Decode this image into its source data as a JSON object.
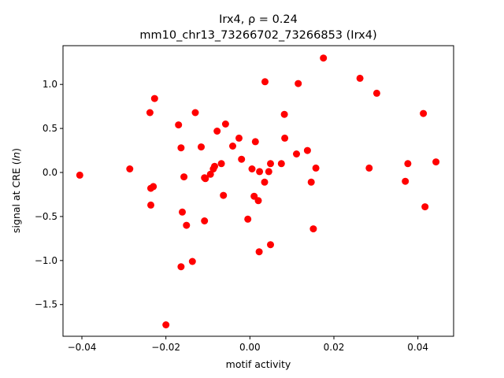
{
  "chart_data": {
    "type": "scatter",
    "title_line1": "Irx4, ρ = 0.24",
    "title_line2": "mm10_chr13_73266702_73266853 (Irx4)",
    "xlabel": "motif activity",
    "ylabel": "signal at CRE (ln)",
    "xlim": [
      -0.0445,
      0.0485
    ],
    "ylim": [
      -1.86,
      1.44
    ],
    "xticks": [
      -0.04,
      -0.02,
      0.0,
      0.02,
      0.04
    ],
    "xtick_labels": [
      "−0.04",
      "−0.02",
      "0.00",
      "0.02",
      "0.04"
    ],
    "yticks": [
      -1.5,
      -1.0,
      -0.5,
      0.0,
      0.5,
      1.0
    ],
    "ytick_labels": [
      "−1.5",
      "−1.0",
      "−0.5",
      "0.0",
      "0.5",
      "1.0"
    ],
    "grid": false,
    "marker_color": "#ff0000",
    "points": [
      {
        "x": -0.0405,
        "y": -0.03
      },
      {
        "x": -0.0286,
        "y": 0.04
      },
      {
        "x": -0.0238,
        "y": 0.68
      },
      {
        "x": -0.0227,
        "y": 0.84
      },
      {
        "x": -0.0236,
        "y": -0.18
      },
      {
        "x": -0.023,
        "y": -0.16
      },
      {
        "x": -0.0236,
        "y": -0.37
      },
      {
        "x": -0.02,
        "y": -1.73
      },
      {
        "x": -0.017,
        "y": 0.54
      },
      {
        "x": -0.0164,
        "y": 0.28
      },
      {
        "x": -0.0157,
        "y": -0.05
      },
      {
        "x": -0.0161,
        "y": -0.45
      },
      {
        "x": -0.0151,
        "y": -0.6
      },
      {
        "x": -0.0164,
        "y": -1.07
      },
      {
        "x": -0.0137,
        "y": -1.01
      },
      {
        "x": -0.013,
        "y": 0.68
      },
      {
        "x": -0.0116,
        "y": 0.29
      },
      {
        "x": -0.0108,
        "y": -0.06
      },
      {
        "x": -0.0106,
        "y": -0.07
      },
      {
        "x": -0.0108,
        "y": -0.55
      },
      {
        "x": -0.0094,
        "y": -0.02
      },
      {
        "x": -0.0087,
        "y": 0.04
      },
      {
        "x": -0.0084,
        "y": 0.07
      },
      {
        "x": -0.0078,
        "y": 0.47
      },
      {
        "x": -0.0068,
        "y": 0.1
      },
      {
        "x": -0.0063,
        "y": -0.26
      },
      {
        "x": -0.0058,
        "y": 0.55
      },
      {
        "x": -0.0041,
        "y": 0.3
      },
      {
        "x": -0.0026,
        "y": 0.39
      },
      {
        "x": -0.002,
        "y": 0.15
      },
      {
        "x": -0.0005,
        "y": -0.53
      },
      {
        "x": 0.0005,
        "y": 0.04
      },
      {
        "x": 0.001,
        "y": -0.27
      },
      {
        "x": 0.0013,
        "y": 0.35
      },
      {
        "x": 0.002,
        "y": -0.32
      },
      {
        "x": 0.0023,
        "y": 0.01
      },
      {
        "x": 0.0022,
        "y": -0.9
      },
      {
        "x": 0.0036,
        "y": 1.03
      },
      {
        "x": 0.0035,
        "y": -0.11
      },
      {
        "x": 0.0045,
        "y": 0.01
      },
      {
        "x": 0.0049,
        "y": 0.1
      },
      {
        "x": 0.0049,
        "y": -0.82
      },
      {
        "x": 0.0075,
        "y": 0.1
      },
      {
        "x": 0.0082,
        "y": 0.66
      },
      {
        "x": 0.0083,
        "y": 0.39
      },
      {
        "x": 0.0111,
        "y": 0.21
      },
      {
        "x": 0.0115,
        "y": 1.01
      },
      {
        "x": 0.0137,
        "y": 0.25
      },
      {
        "x": 0.0146,
        "y": -0.11
      },
      {
        "x": 0.0151,
        "y": -0.64
      },
      {
        "x": 0.0157,
        "y": 0.05
      },
      {
        "x": 0.0175,
        "y": 1.3
      },
      {
        "x": 0.0262,
        "y": 1.07
      },
      {
        "x": 0.0284,
        "y": 0.05
      },
      {
        "x": 0.0302,
        "y": 0.9
      },
      {
        "x": 0.037,
        "y": -0.1
      },
      {
        "x": 0.0376,
        "y": 0.1
      },
      {
        "x": 0.0413,
        "y": 0.67
      },
      {
        "x": 0.0417,
        "y": -0.39
      },
      {
        "x": 0.0443,
        "y": 0.12
      }
    ]
  }
}
